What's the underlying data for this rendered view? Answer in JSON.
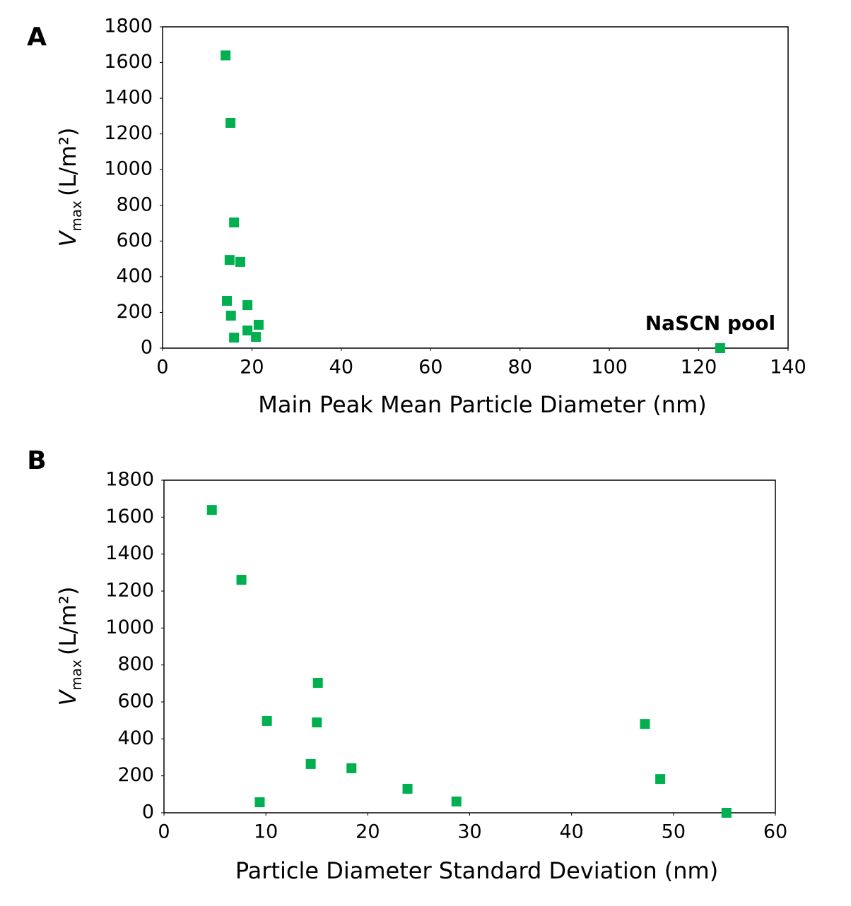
{
  "chart_data": [
    {
      "type": "scatter",
      "label": "A",
      "xlabel": "Main Peak Mean Particle Diameter (nm)",
      "ylabel": {
        "symbol": "V",
        "subscript": "max",
        "unit": "(L/m²)"
      },
      "annotation": "NaSCN pool",
      "color": "#00b050",
      "x": [
        14.1,
        15.2,
        16.0,
        15.0,
        17.4,
        14.4,
        19.0,
        15.3,
        21.5,
        19.0,
        16.0,
        20.9,
        124.8
      ],
      "values": [
        1640,
        1262,
        704,
        494,
        483,
        265,
        241,
        182,
        131,
        99,
        59,
        63,
        0
      ],
      "xlim": [
        0,
        140
      ],
      "xticks": [
        0,
        20,
        40,
        60,
        80,
        100,
        120,
        140
      ],
      "ylim": [
        0,
        1800
      ],
      "yticks": [
        0,
        200,
        400,
        600,
        800,
        1000,
        1200,
        1400,
        1600,
        1800
      ]
    },
    {
      "type": "scatter",
      "label": "B",
      "xlabel": "Particle Diameter Standard Deviation (nm)",
      "ylabel": {
        "symbol": "V",
        "subscript": "max",
        "unit": "(L/m²)"
      },
      "color": "#00b050",
      "x": [
        4.7,
        7.6,
        15.1,
        10.1,
        15.0,
        47.2,
        14.4,
        18.4,
        48.7,
        23.9,
        9.4,
        28.7,
        55.2
      ],
      "values": [
        1639,
        1261,
        703,
        497,
        489,
        481,
        264,
        241,
        183,
        130,
        57,
        61,
        0
      ],
      "xlim": [
        0,
        60
      ],
      "xticks": [
        0,
        10,
        20,
        30,
        40,
        50,
        60
      ],
      "ylim": [
        0,
        1800
      ],
      "yticks": [
        0,
        200,
        400,
        600,
        800,
        1000,
        1200,
        1400,
        1600,
        1800
      ]
    }
  ]
}
